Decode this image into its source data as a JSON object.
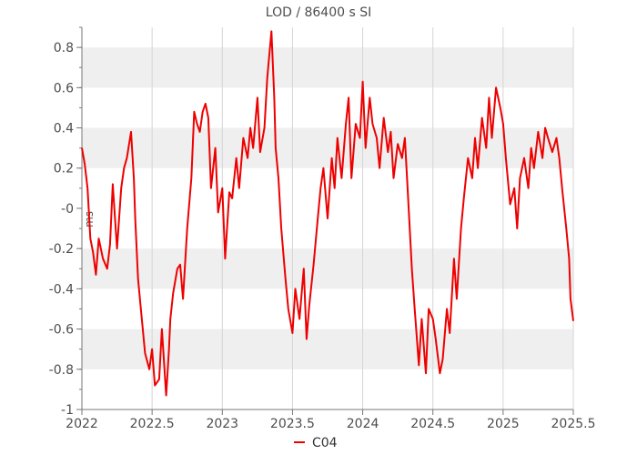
{
  "chart_data": {
    "type": "line",
    "title": "LOD / 86400 s SI",
    "ylabel": "ms",
    "xlim": [
      2022,
      2025.5
    ],
    "ylim": [
      -1,
      0.9
    ],
    "x_ticks": [
      {
        "value": 2022,
        "label": "2022"
      },
      {
        "value": 2022.5,
        "label": "2022.5"
      },
      {
        "value": 2023,
        "label": "2023"
      },
      {
        "value": 2023.5,
        "label": "2023.5"
      },
      {
        "value": 2024,
        "label": "2024"
      },
      {
        "value": 2024.5,
        "label": "2024.5"
      },
      {
        "value": 2025,
        "label": "2025"
      },
      {
        "value": 2025.5,
        "label": "2025.5"
      }
    ],
    "y_ticks": [
      {
        "value": 0.8,
        "label": "0.8"
      },
      {
        "value": 0.6,
        "label": "0.6"
      },
      {
        "value": 0.4,
        "label": "0.4"
      },
      {
        "value": 0.2,
        "label": "0.2"
      },
      {
        "value": 0,
        "label": "-0"
      },
      {
        "value": -0.2,
        "label": "-0.2"
      },
      {
        "value": -0.4,
        "label": "-0.4"
      },
      {
        "value": -0.6,
        "label": "-0.6"
      },
      {
        "value": -0.8,
        "label": "-0.8"
      },
      {
        "value": -1,
        "label": "-1"
      }
    ],
    "grid": true,
    "bands": [
      [
        0.6,
        0.8
      ],
      [
        0.2,
        0.4
      ],
      [
        -0.2,
        -0.4
      ],
      [
        -0.6,
        -0.8
      ]
    ],
    "legend": {
      "position": "bottom-center"
    },
    "colors": {
      "line": "#ee0000",
      "band": "#efefef",
      "grid": "#d4d4d4"
    },
    "series": [
      {
        "name": "C04",
        "x": [
          2022.0,
          2022.02,
          2022.04,
          2022.06,
          2022.08,
          2022.1,
          2022.12,
          2022.15,
          2022.18,
          2022.2,
          2022.22,
          2022.25,
          2022.28,
          2022.3,
          2022.32,
          2022.35,
          2022.37,
          2022.38,
          2022.4,
          2022.42,
          2022.45,
          2022.48,
          2022.5,
          2022.52,
          2022.55,
          2022.57,
          2022.6,
          2022.62,
          2022.63,
          2022.65,
          2022.68,
          2022.7,
          2022.72,
          2022.75,
          2022.78,
          2022.8,
          2022.82,
          2022.84,
          2022.86,
          2022.88,
          2022.9,
          2022.92,
          2022.95,
          2022.97,
          2023.0,
          2023.02,
          2023.05,
          2023.07,
          2023.1,
          2023.12,
          2023.15,
          2023.18,
          2023.2,
          2023.22,
          2023.25,
          2023.27,
          2023.3,
          2023.32,
          2023.35,
          2023.37,
          2023.38,
          2023.4,
          2023.42,
          2023.45,
          2023.47,
          2023.5,
          2023.52,
          2023.55,
          2023.58,
          2023.6,
          2023.62,
          2023.65,
          2023.68,
          2023.7,
          2023.72,
          2023.75,
          2023.78,
          2023.8,
          2023.82,
          2023.85,
          2023.88,
          2023.9,
          2023.92,
          2023.95,
          2023.98,
          2024.0,
          2024.02,
          2024.05,
          2024.07,
          2024.1,
          2024.12,
          2024.15,
          2024.18,
          2024.2,
          2024.22,
          2024.25,
          2024.28,
          2024.3,
          2024.32,
          2024.35,
          2024.37,
          2024.4,
          2024.42,
          2024.45,
          2024.47,
          2024.5,
          2024.52,
          2024.55,
          2024.57,
          2024.6,
          2024.62,
          2024.65,
          2024.67,
          2024.7,
          2024.72,
          2024.75,
          2024.78,
          2024.8,
          2024.82,
          2024.85,
          2024.88,
          2024.9,
          2024.92,
          2024.95,
          2024.98,
          2025.0,
          2025.02,
          2025.05,
          2025.08,
          2025.1,
          2025.12,
          2025.15,
          2025.18,
          2025.2,
          2025.22,
          2025.25,
          2025.28,
          2025.3,
          2025.32,
          2025.35,
          2025.38,
          2025.4,
          2025.42,
          2025.45,
          2025.47,
          2025.48,
          2025.5
        ],
        "values": [
          0.3,
          0.22,
          0.1,
          -0.15,
          -0.22,
          -0.33,
          -0.15,
          -0.25,
          -0.3,
          -0.18,
          0.12,
          -0.2,
          0.1,
          0.2,
          0.25,
          0.38,
          0.15,
          -0.05,
          -0.35,
          -0.5,
          -0.72,
          -0.8,
          -0.7,
          -0.88,
          -0.85,
          -0.6,
          -0.93,
          -0.7,
          -0.55,
          -0.42,
          -0.3,
          -0.28,
          -0.45,
          -0.1,
          0.15,
          0.48,
          0.42,
          0.38,
          0.48,
          0.52,
          0.45,
          0.1,
          0.3,
          -0.02,
          0.1,
          -0.25,
          0.08,
          0.05,
          0.25,
          0.1,
          0.35,
          0.25,
          0.4,
          0.3,
          0.55,
          0.28,
          0.4,
          0.65,
          0.88,
          0.55,
          0.3,
          0.15,
          -0.1,
          -0.35,
          -0.5,
          -0.62,
          -0.4,
          -0.55,
          -0.3,
          -0.65,
          -0.48,
          -0.28,
          -0.05,
          0.1,
          0.2,
          -0.05,
          0.25,
          0.1,
          0.35,
          0.15,
          0.42,
          0.55,
          0.15,
          0.42,
          0.35,
          0.63,
          0.3,
          0.55,
          0.42,
          0.35,
          0.2,
          0.45,
          0.28,
          0.38,
          0.15,
          0.32,
          0.25,
          0.35,
          0.1,
          -0.3,
          -0.5,
          -0.78,
          -0.55,
          -0.82,
          -0.5,
          -0.55,
          -0.65,
          -0.82,
          -0.75,
          -0.5,
          -0.62,
          -0.25,
          -0.45,
          -0.1,
          0.05,
          0.25,
          0.15,
          0.35,
          0.2,
          0.45,
          0.3,
          0.55,
          0.35,
          0.6,
          0.5,
          0.42,
          0.25,
          0.02,
          0.1,
          -0.1,
          0.15,
          0.25,
          0.1,
          0.3,
          0.2,
          0.38,
          0.25,
          0.4,
          0.35,
          0.28,
          0.35,
          0.25,
          0.1,
          -0.1,
          -0.25,
          -0.45,
          -0.56
        ]
      }
    ]
  }
}
